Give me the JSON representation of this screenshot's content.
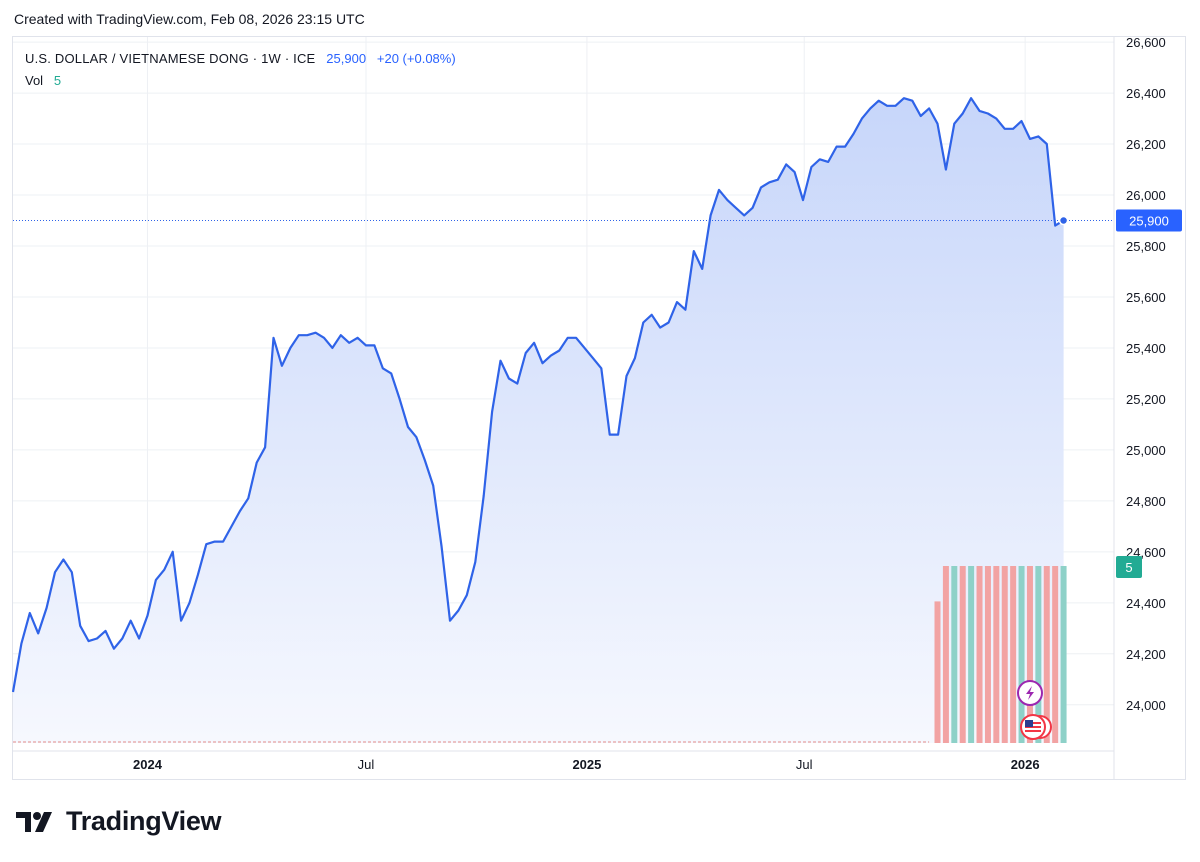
{
  "header": {
    "created_note": "Created with TradingView.com, Feb 08, 2026 23:15 UTC"
  },
  "legend": {
    "symbol_title": "U.S. DOLLAR / VIETNAMESE DONG · 1W · ICE",
    "last_price": "25,900",
    "change": "+20 (+0.08%)",
    "vol_label": "Vol",
    "vol_value": "5"
  },
  "price_badge": "25,900",
  "volume_badge": "5",
  "brand": {
    "name": "TradingView"
  },
  "colors": {
    "line": "#2f63e8",
    "area_top": "#c7d6fa",
    "area_bottom": "#f6f8fe",
    "volume_up": "#8ed1c8",
    "volume_down": "#f2a3a3",
    "price_badge": "#2962ff",
    "volume_badge": "#22ab94",
    "grid": "#eef0f4"
  },
  "chart_data": {
    "type": "area",
    "ylim": [
      23850,
      26620
    ],
    "ytick_values": [
      24000,
      24200,
      24400,
      24600,
      24800,
      25000,
      25200,
      25400,
      25600,
      25800,
      26000,
      26200,
      26400,
      26600
    ],
    "ytick_labels": [
      "24,000",
      "24,200",
      "24,400",
      "24,600",
      "24,800",
      "25,000",
      "25,200",
      "25,400",
      "25,600",
      "25,800",
      "26,000",
      "26,200",
      "26,400",
      "26,600"
    ],
    "xlim": [
      "2023-09-11",
      "2026-03-16"
    ],
    "xtick_values": [
      "2024-01-01",
      "2024-07-01",
      "2025-01-01",
      "2025-07-01",
      "2026-01-01"
    ],
    "xtick_labels": [
      "2024",
      "Jul",
      "2025",
      "Jul",
      "2026"
    ],
    "xtick_bold": [
      true,
      false,
      true,
      false,
      true
    ],
    "grid": true,
    "last_value": 25900,
    "series": [
      {
        "values": [
          [
            "2023-09-11",
            24050
          ],
          [
            "2023-09-18",
            24240
          ],
          [
            "2023-09-25",
            24360
          ],
          [
            "2023-10-02",
            24280
          ],
          [
            "2023-10-09",
            24380
          ],
          [
            "2023-10-16",
            24520
          ],
          [
            "2023-10-23",
            24570
          ],
          [
            "2023-10-30",
            24520
          ],
          [
            "2023-11-06",
            24310
          ],
          [
            "2023-11-13",
            24250
          ],
          [
            "2023-11-20",
            24260
          ],
          [
            "2023-11-27",
            24290
          ],
          [
            "2023-12-04",
            24220
          ],
          [
            "2023-12-11",
            24260
          ],
          [
            "2023-12-18",
            24330
          ],
          [
            "2023-12-25",
            24260
          ],
          [
            "2024-01-01",
            24350
          ],
          [
            "2024-01-08",
            24490
          ],
          [
            "2024-01-15",
            24530
          ],
          [
            "2024-01-22",
            24600
          ],
          [
            "2024-01-29",
            24330
          ],
          [
            "2024-02-05",
            24400
          ],
          [
            "2024-02-12",
            24510
          ],
          [
            "2024-02-19",
            24630
          ],
          [
            "2024-02-26",
            24640
          ],
          [
            "2024-03-04",
            24640
          ],
          [
            "2024-03-11",
            24700
          ],
          [
            "2024-03-18",
            24760
          ],
          [
            "2024-03-25",
            24810
          ],
          [
            "2024-04-01",
            24950
          ],
          [
            "2024-04-08",
            25010
          ],
          [
            "2024-04-15",
            25440
          ],
          [
            "2024-04-22",
            25330
          ],
          [
            "2024-04-29",
            25400
          ],
          [
            "2024-05-06",
            25450
          ],
          [
            "2024-05-13",
            25450
          ],
          [
            "2024-05-20",
            25460
          ],
          [
            "2024-05-27",
            25440
          ],
          [
            "2024-06-03",
            25400
          ],
          [
            "2024-06-10",
            25450
          ],
          [
            "2024-06-17",
            25420
          ],
          [
            "2024-06-24",
            25440
          ],
          [
            "2024-07-01",
            25410
          ],
          [
            "2024-07-08",
            25410
          ],
          [
            "2024-07-15",
            25320
          ],
          [
            "2024-07-22",
            25300
          ],
          [
            "2024-07-29",
            25200
          ],
          [
            "2024-08-05",
            25090
          ],
          [
            "2024-08-12",
            25050
          ],
          [
            "2024-08-19",
            24960
          ],
          [
            "2024-08-26",
            24860
          ],
          [
            "2024-09-02",
            24620
          ],
          [
            "2024-09-09",
            24330
          ],
          [
            "2024-09-16",
            24370
          ],
          [
            "2024-09-23",
            24430
          ],
          [
            "2024-09-30",
            24560
          ],
          [
            "2024-10-07",
            24820
          ],
          [
            "2024-10-14",
            25150
          ],
          [
            "2024-10-21",
            25350
          ],
          [
            "2024-10-28",
            25280
          ],
          [
            "2024-11-04",
            25260
          ],
          [
            "2024-11-11",
            25380
          ],
          [
            "2024-11-18",
            25420
          ],
          [
            "2024-11-25",
            25340
          ],
          [
            "2024-12-02",
            25370
          ],
          [
            "2024-12-09",
            25390
          ],
          [
            "2024-12-16",
            25440
          ],
          [
            "2024-12-23",
            25440
          ],
          [
            "2024-12-30",
            25400
          ],
          [
            "2025-01-06",
            25360
          ],
          [
            "2025-01-13",
            25320
          ],
          [
            "2025-01-20",
            25060
          ],
          [
            "2025-01-27",
            25060
          ],
          [
            "2025-02-03",
            25290
          ],
          [
            "2025-02-10",
            25360
          ],
          [
            "2025-02-17",
            25500
          ],
          [
            "2025-02-24",
            25530
          ],
          [
            "2025-03-03",
            25480
          ],
          [
            "2025-03-10",
            25500
          ],
          [
            "2025-03-17",
            25580
          ],
          [
            "2025-03-24",
            25550
          ],
          [
            "2025-03-31",
            25780
          ],
          [
            "2025-04-07",
            25710
          ],
          [
            "2025-04-14",
            25920
          ],
          [
            "2025-04-21",
            26020
          ],
          [
            "2025-04-28",
            25980
          ],
          [
            "2025-05-05",
            25950
          ],
          [
            "2025-05-12",
            25920
          ],
          [
            "2025-05-19",
            25950
          ],
          [
            "2025-05-26",
            26030
          ],
          [
            "2025-06-02",
            26050
          ],
          [
            "2025-06-09",
            26060
          ],
          [
            "2025-06-16",
            26120
          ],
          [
            "2025-06-23",
            26090
          ],
          [
            "2025-06-30",
            25980
          ],
          [
            "2025-07-07",
            26110
          ],
          [
            "2025-07-14",
            26140
          ],
          [
            "2025-07-21",
            26130
          ],
          [
            "2025-07-28",
            26190
          ],
          [
            "2025-08-04",
            26190
          ],
          [
            "2025-08-11",
            26240
          ],
          [
            "2025-08-18",
            26300
          ],
          [
            "2025-08-25",
            26340
          ],
          [
            "2025-09-01",
            26370
          ],
          [
            "2025-09-08",
            26350
          ],
          [
            "2025-09-15",
            26350
          ],
          [
            "2025-09-22",
            26380
          ],
          [
            "2025-09-29",
            26370
          ],
          [
            "2025-10-06",
            26310
          ],
          [
            "2025-10-13",
            26340
          ],
          [
            "2025-10-20",
            26280
          ],
          [
            "2025-10-27",
            26100
          ],
          [
            "2025-11-03",
            26280
          ],
          [
            "2025-11-10",
            26320
          ],
          [
            "2025-11-17",
            26380
          ],
          [
            "2025-11-24",
            26330
          ],
          [
            "2025-12-01",
            26320
          ],
          [
            "2025-12-08",
            26300
          ],
          [
            "2025-12-15",
            26260
          ],
          [
            "2025-12-22",
            26260
          ],
          [
            "2025-12-29",
            26290
          ],
          [
            "2026-01-05",
            26220
          ],
          [
            "2026-01-12",
            26230
          ],
          [
            "2026-01-19",
            26200
          ],
          [
            "2026-01-26",
            25880
          ],
          [
            "2026-02-02",
            25900
          ]
        ]
      }
    ],
    "volume": {
      "values": [
        [
          "2025-10-20",
          4,
          "down"
        ],
        [
          "2025-10-27",
          5,
          "down"
        ],
        [
          "2025-11-03",
          5,
          "up"
        ],
        [
          "2025-11-10",
          5,
          "down"
        ],
        [
          "2025-11-17",
          5,
          "up"
        ],
        [
          "2025-11-24",
          5,
          "down"
        ],
        [
          "2025-12-01",
          5,
          "down"
        ],
        [
          "2025-12-08",
          5,
          "down"
        ],
        [
          "2025-12-15",
          5,
          "down"
        ],
        [
          "2025-12-22",
          5,
          "down"
        ],
        [
          "2025-12-29",
          5,
          "up"
        ],
        [
          "2026-01-05",
          5,
          "down"
        ],
        [
          "2026-01-12",
          5,
          "up"
        ],
        [
          "2026-01-19",
          5,
          "down"
        ],
        [
          "2026-01-26",
          5,
          "down"
        ],
        [
          "2026-02-02",
          5,
          "up"
        ]
      ]
    }
  }
}
